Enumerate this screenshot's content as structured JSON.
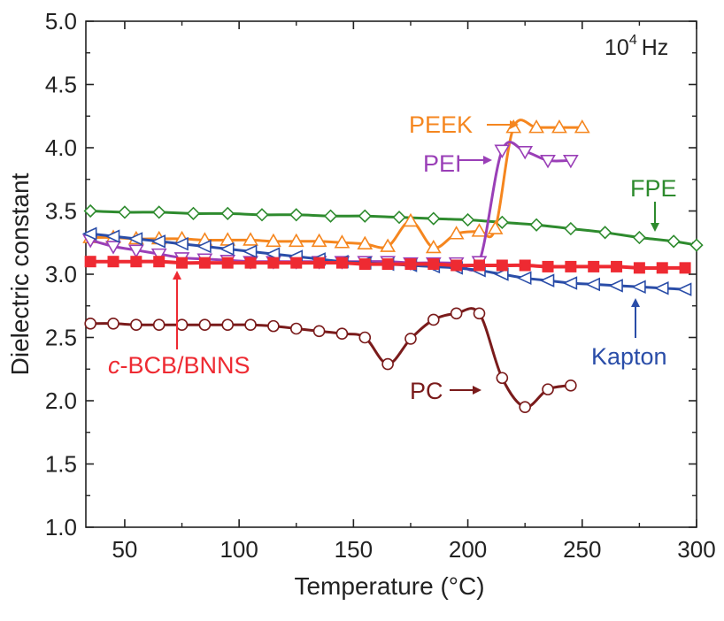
{
  "chart_data": {
    "type": "line",
    "xlabel": "Temperature (°C)",
    "ylabel": "Dielectric constant",
    "xlim": [
      33,
      300
    ],
    "ylim": [
      1.0,
      5.0
    ],
    "xticks": [
      50,
      100,
      150,
      200,
      250,
      300
    ],
    "yticks": [
      1.0,
      1.5,
      2.0,
      2.5,
      3.0,
      3.5,
      4.0,
      4.5,
      5.0
    ],
    "annotation": {
      "base": "10",
      "exponent": "4",
      "unit": "Hz"
    },
    "series": [
      {
        "name": "FPE",
        "color": "#2e8b2e",
        "marker": "diamond",
        "x": [
          35,
          50,
          65,
          80,
          95,
          110,
          125,
          140,
          155,
          170,
          185,
          200,
          215,
          230,
          245,
          260,
          275,
          290,
          300
        ],
        "y": [
          3.5,
          3.49,
          3.49,
          3.48,
          3.48,
          3.47,
          3.47,
          3.46,
          3.46,
          3.45,
          3.44,
          3.43,
          3.41,
          3.39,
          3.36,
          3.33,
          3.29,
          3.26,
          3.23
        ]
      },
      {
        "name": "PEEK",
        "color": "#f5861f",
        "marker": "triangle-up",
        "x": [
          35,
          45,
          55,
          65,
          75,
          85,
          95,
          105,
          115,
          125,
          135,
          145,
          155,
          165,
          175,
          185,
          195,
          205,
          212,
          220,
          230,
          240,
          250
        ],
        "y": [
          3.29,
          3.29,
          3.28,
          3.28,
          3.28,
          3.27,
          3.27,
          3.27,
          3.26,
          3.26,
          3.26,
          3.25,
          3.24,
          3.22,
          3.42,
          3.21,
          3.32,
          3.34,
          3.36,
          4.16,
          4.16,
          4.16,
          4.16
        ]
      },
      {
        "name": "PEI",
        "color": "#9a3fb7",
        "marker": "triangle-down",
        "x": [
          35,
          45,
          55,
          65,
          75,
          85,
          95,
          105,
          115,
          125,
          135,
          145,
          155,
          165,
          175,
          185,
          195,
          205,
          215,
          225,
          235,
          245
        ],
        "y": [
          3.27,
          3.22,
          3.19,
          3.16,
          3.13,
          3.12,
          3.11,
          3.1,
          3.1,
          3.1,
          3.1,
          3.1,
          3.1,
          3.1,
          3.09,
          3.09,
          3.09,
          3.1,
          3.98,
          3.97,
          3.9,
          3.9
        ]
      },
      {
        "name": "Kapton",
        "color": "#2a4da8",
        "marker": "triangle-left",
        "x": [
          35,
          45,
          55,
          65,
          75,
          85,
          95,
          105,
          115,
          125,
          135,
          145,
          155,
          165,
          175,
          185,
          195,
          205,
          215,
          225,
          235,
          245,
          255,
          265,
          275,
          285,
          295
        ],
        "y": [
          3.32,
          3.3,
          3.28,
          3.26,
          3.24,
          3.22,
          3.2,
          3.18,
          3.16,
          3.14,
          3.12,
          3.1,
          3.09,
          3.08,
          3.07,
          3.06,
          3.05,
          3.03,
          3.0,
          2.97,
          2.95,
          2.93,
          2.92,
          2.91,
          2.9,
          2.89,
          2.88
        ]
      },
      {
        "name": "c-BCB/BNNS",
        "color": "#ee2a32",
        "marker": "square",
        "x": [
          35,
          45,
          55,
          65,
          75,
          85,
          95,
          105,
          115,
          125,
          135,
          145,
          155,
          165,
          175,
          185,
          195,
          205,
          215,
          225,
          235,
          245,
          255,
          265,
          275,
          285,
          295
        ],
        "y": [
          3.1,
          3.1,
          3.1,
          3.1,
          3.09,
          3.09,
          3.09,
          3.09,
          3.09,
          3.09,
          3.09,
          3.09,
          3.08,
          3.08,
          3.08,
          3.08,
          3.07,
          3.07,
          3.07,
          3.07,
          3.06,
          3.06,
          3.06,
          3.06,
          3.05,
          3.05,
          3.05
        ]
      },
      {
        "name": "PC",
        "color": "#7a1b1b",
        "marker": "circle",
        "x": [
          35,
          45,
          55,
          65,
          75,
          85,
          95,
          105,
          115,
          125,
          135,
          145,
          155,
          165,
          175,
          185,
          195,
          205,
          215,
          225,
          235,
          245
        ],
        "y": [
          2.61,
          2.61,
          2.6,
          2.6,
          2.6,
          2.6,
          2.6,
          2.6,
          2.59,
          2.57,
          2.55,
          2.53,
          2.5,
          2.29,
          2.49,
          2.64,
          2.69,
          2.69,
          2.18,
          1.95,
          2.09,
          2.12
        ]
      }
    ]
  },
  "labels": {
    "FPE": "FPE",
    "PEEK": "PEEK",
    "PEI": "PEI",
    "Kapton": "Kapton",
    "bcb_prefix": "c",
    "bcb_rest": "-BCB/BNNS",
    "PC": "PC"
  }
}
